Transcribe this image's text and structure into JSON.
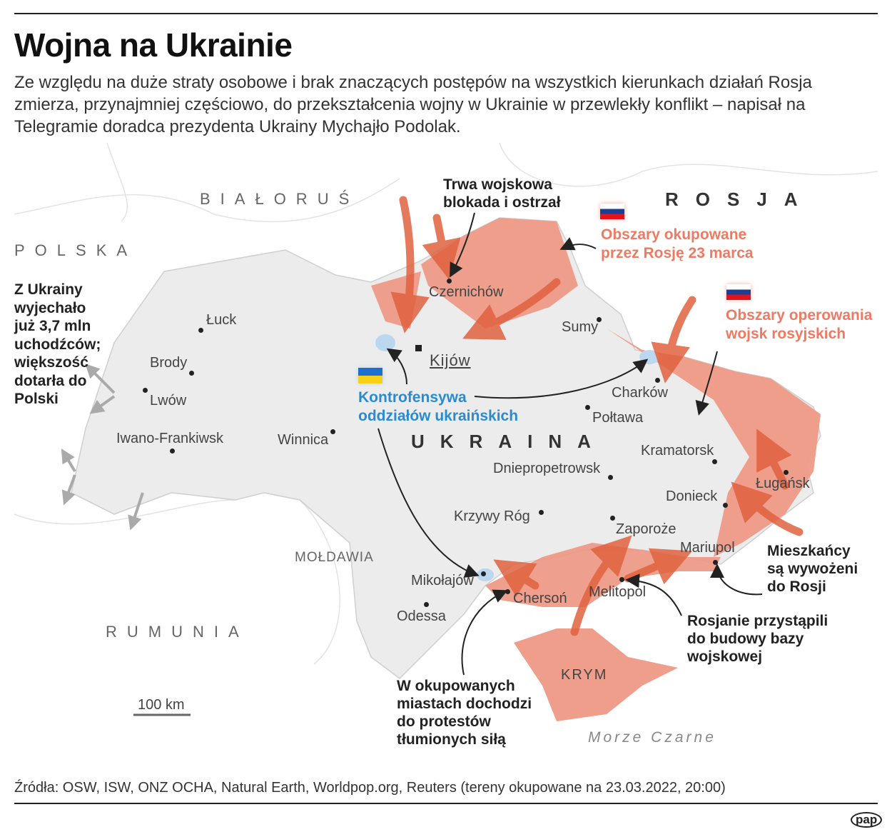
{
  "title": "Wojna na Ukrainie",
  "lead": "Ze względu na duże straty osobowe i brak znaczących postępów na wszystkich kierunkach działań Rosja zmierza, przynajmniej częściowo, do przekształcenia wojny w Ukrainie w przewlekły konflikt – napisał na Telegramie doradca prezydenta Ukrainy Mychajło Podolak.",
  "countries": {
    "belarus": "BIAŁORUŚ",
    "russia": "ROSJA",
    "poland": "POLSKA",
    "ukraine": "UKRAINA",
    "moldova": "MOŁDAWIA",
    "romania": "RUMUNIA",
    "sea": "Morze Czarne",
    "crimea": "KRYM"
  },
  "cities": {
    "kyiv": "Kijów",
    "chernihiv": "Czernichów",
    "sumy": "Sumy",
    "kharkiv": "Charków",
    "poltava": "Połtawa",
    "kramatorsk": "Kramatorsk",
    "dnipro": "Dniepropetrowsk",
    "luhansk": "Ługańsk",
    "donetsk": "Donieck",
    "zaporizhzhia": "Zaporoże",
    "mariupol": "Mariupol",
    "melitopol": "Melitopol",
    "kherson": "Chersoń",
    "mykolaiv": "Mikołajów",
    "odesa": "Odessa",
    "kryvyi_rih": "Krzywy Róg",
    "vinnytsia": "Winnica",
    "lutsk": "Łuck",
    "brody": "Brody",
    "lviv": "Lwów",
    "ivano_frankivsk": "Iwano-Frankiwsk"
  },
  "legend": {
    "occupied": "Obszary okupowane przez Rosję 23 marca",
    "operating": "Obszary operowania wojsk rosyjskich",
    "counteroffensive": "Kontrofensywa oddziałów ukraińskich",
    "colors": {
      "occupied": "#ef9a87",
      "legend_text": "#ef7a63",
      "counter": "#2b8ad0",
      "territory": "#ececec"
    }
  },
  "annotations": {
    "blockade": "Trwa wojskowa blokada i ostrzał",
    "refugees": "Z Ukrainy wyjechało już 3,7 mln uchodźców; większość dotarła do Polski",
    "deported": "Mieszkańcy są wywożeni do Rosji",
    "base": "Rosjanie przystąpili do budowy bazy wojskowej",
    "protests": "W okupowanych miastach dochodzi do protestów tłumionych siłą"
  },
  "scale": "100 km",
  "source": "Źródła: OSW, ISW, ONZ OCHA, Natural Earth, Worldpop.org, Reuters (tereny okupowane na 23.03.2022, 20:00)",
  "logo": "pap"
}
